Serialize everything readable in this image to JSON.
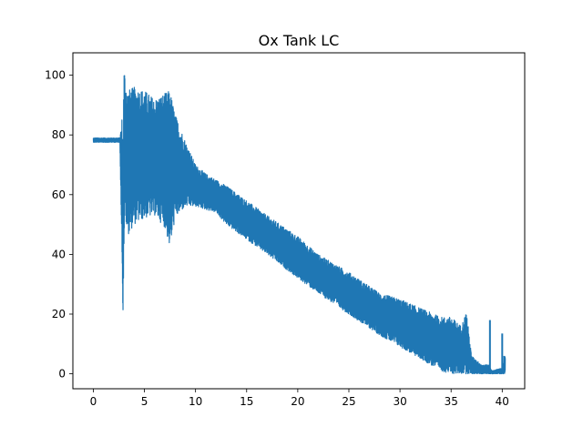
{
  "chart_data": {
    "type": "line",
    "title": "Ox Tank LC",
    "xlabel": "",
    "ylabel": "",
    "xlim": [
      -2.0,
      42.2
    ],
    "ylim": [
      -5,
      107.5
    ],
    "x_ticks": [
      0,
      5,
      10,
      15,
      20,
      25,
      30,
      35,
      40
    ],
    "y_ticks": [
      0,
      20,
      40,
      60,
      80,
      100
    ],
    "grid": false,
    "legend": "none",
    "series_color": "#1f77b4",
    "series": [
      {
        "x_range": [
          0.0,
          40.3
        ],
        "envelope": {
          "x": [
            0.0,
            2.6,
            2.8,
            2.9,
            3.0,
            3.1,
            3.3,
            4.0,
            5.0,
            6.0,
            7.0,
            7.5,
            8.0,
            9.0,
            10.0,
            11.0,
            12.0,
            13.0,
            15.0,
            17.0,
            20.0,
            22.0,
            25.0,
            28.0,
            30.0,
            32.0,
            34.0,
            35.0,
            36.0,
            36.5,
            37.0,
            38.0,
            38.7,
            39.0,
            40.0,
            40.3
          ],
          "y_low": [
            77.5,
            77.5,
            40.0,
            19.0,
            42.0,
            55.0,
            46.0,
            50.0,
            52.0,
            53.0,
            49.0,
            42.0,
            52.0,
            56.0,
            56.0,
            55.0,
            54.0,
            50.0,
            45.0,
            40.0,
            32.0,
            27.0,
            20.0,
            13.0,
            9.0,
            5.0,
            1.0,
            0.0,
            0.0,
            0.0,
            0.0,
            0.0,
            0.0,
            0.0,
            0.0,
            0.0
          ],
          "y_high": [
            79.0,
            79.0,
            86.0,
            80.0,
            103.0,
            101.0,
            95.0,
            96.0,
            95.0,
            92.0,
            94.0,
            95.0,
            87.0,
            78.0,
            70.0,
            67.0,
            65.0,
            63.0,
            58.0,
            53.0,
            46.0,
            40.0,
            34.0,
            27.0,
            25.0,
            22.0,
            19.0,
            19.0,
            16.0,
            21.0,
            6.0,
            3.0,
            3.0,
            1.0,
            2.0,
            6.0
          ]
        },
        "spikes": [
          {
            "x": 38.8,
            "y": 18.0
          },
          {
            "x": 40.0,
            "y": 13.5
          },
          {
            "x": 40.2,
            "y": 6.0
          }
        ]
      }
    ]
  }
}
